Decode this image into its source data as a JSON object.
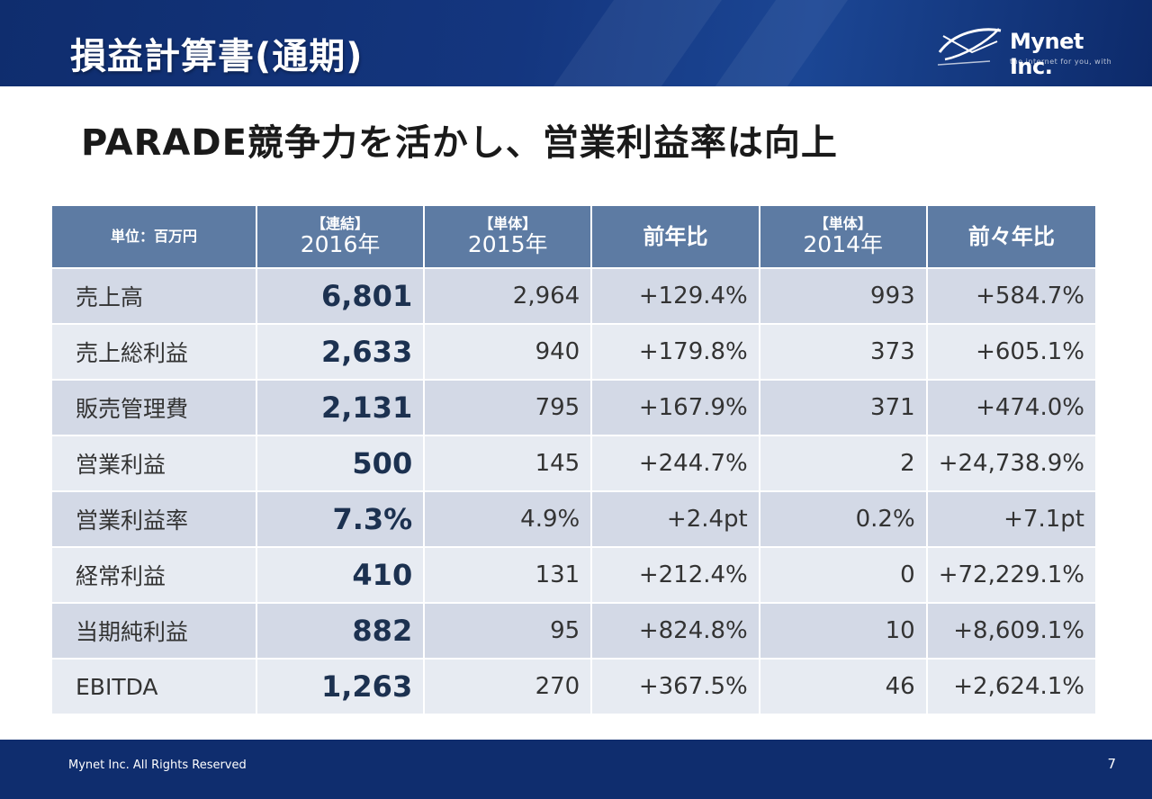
{
  "header": {
    "title": "損益計算書(通期)",
    "logo_text": "Mynet Inc.",
    "logo_tagline": "the internet for you, with"
  },
  "headline": "PARADE競争力を活かし、営業利益率は向上",
  "table": {
    "unit_label": "単位：百万円",
    "columns": [
      {
        "sub": "【連結】",
        "year": "2016年"
      },
      {
        "sub": "【単体】",
        "year": "2015年"
      },
      {
        "label": "前年比"
      },
      {
        "sub": "【単体】",
        "year": "2014年"
      },
      {
        "label": "前々年比"
      }
    ],
    "rows": [
      {
        "label": "売上高",
        "v2016": "6,801",
        "v2015": "2,964",
        "yoy": "+129.4%",
        "v2014": "993",
        "yoy2": "+584.7%"
      },
      {
        "label": "売上総利益",
        "v2016": "2,633",
        "v2015": "940",
        "yoy": "+179.8%",
        "v2014": "373",
        "yoy2": "+605.1%"
      },
      {
        "label": "販売管理費",
        "v2016": "2,131",
        "v2015": "795",
        "yoy": "+167.9%",
        "v2014": "371",
        "yoy2": "+474.0%"
      },
      {
        "label": "営業利益",
        "v2016": "500",
        "v2015": "145",
        "yoy": "+244.7%",
        "v2014": "2",
        "yoy2": "+24,738.9%"
      },
      {
        "label": "営業利益率",
        "v2016": "7.3%",
        "v2015": "4.9%",
        "yoy": "+2.4pt",
        "v2014": "0.2%",
        "yoy2": "+7.1pt"
      },
      {
        "label": "経常利益",
        "v2016": "410",
        "v2015": "131",
        "yoy": "+212.4%",
        "v2014": "0",
        "yoy2": "+72,229.1%"
      },
      {
        "label": "当期純利益",
        "v2016": "882",
        "v2015": "95",
        "yoy": "+824.8%",
        "v2014": "10",
        "yoy2": "+8,609.1%"
      },
      {
        "label": "EBITDA",
        "v2016": "1,263",
        "v2015": "270",
        "yoy": "+367.5%",
        "v2014": "46",
        "yoy2": "+2,624.1%"
      }
    ]
  },
  "footer": {
    "copyright": "Mynet Inc. All Rights Reserved",
    "page_number": "7"
  },
  "colors": {
    "header_bg": "#0f2d6e",
    "table_header_bg": "#5d7ba3",
    "row_odd": "#d3d9e6",
    "row_even": "#e7ebf2"
  }
}
